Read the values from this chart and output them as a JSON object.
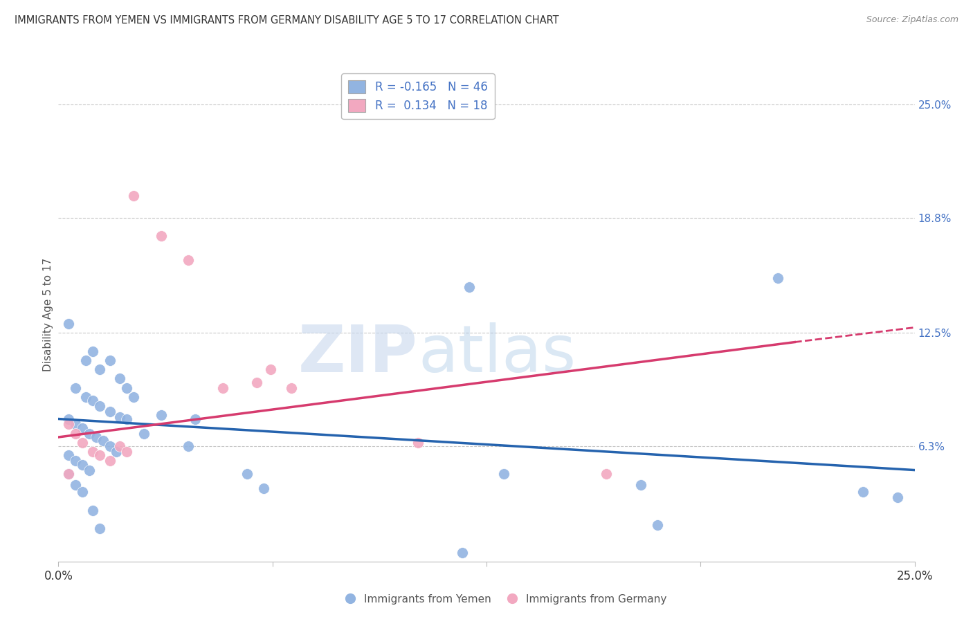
{
  "title": "IMMIGRANTS FROM YEMEN VS IMMIGRANTS FROM GERMANY DISABILITY AGE 5 TO 17 CORRELATION CHART",
  "source": "Source: ZipAtlas.com",
  "ylabel": "Disability Age 5 to 17",
  "xlim": [
    0.0,
    0.25
  ],
  "ylim": [
    0.0,
    0.27
  ],
  "ytick_labels": [
    "25.0%",
    "18.8%",
    "12.5%",
    "6.3%"
  ],
  "ytick_positions": [
    0.25,
    0.188,
    0.125,
    0.063
  ],
  "watermark_zip": "ZIP",
  "watermark_atlas": "atlas",
  "legend_blue_r": "-0.165",
  "legend_blue_n": "46",
  "legend_pink_r": "0.134",
  "legend_pink_n": "18",
  "blue_color": "#92b4e1",
  "pink_color": "#f2a8c0",
  "blue_line_color": "#2563ae",
  "pink_line_color": "#d63b6e",
  "blue_scatter": [
    [
      0.003,
      0.13
    ],
    [
      0.008,
      0.11
    ],
    [
      0.01,
      0.115
    ],
    [
      0.012,
      0.105
    ],
    [
      0.015,
      0.11
    ],
    [
      0.018,
      0.1
    ],
    [
      0.005,
      0.095
    ],
    [
      0.008,
      0.09
    ],
    [
      0.01,
      0.088
    ],
    [
      0.012,
      0.085
    ],
    [
      0.015,
      0.082
    ],
    [
      0.018,
      0.079
    ],
    [
      0.02,
      0.095
    ],
    [
      0.022,
      0.09
    ],
    [
      0.003,
      0.078
    ],
    [
      0.005,
      0.075
    ],
    [
      0.007,
      0.073
    ],
    [
      0.009,
      0.07
    ],
    [
      0.011,
      0.068
    ],
    [
      0.013,
      0.066
    ],
    [
      0.015,
      0.063
    ],
    [
      0.017,
      0.06
    ],
    [
      0.003,
      0.058
    ],
    [
      0.005,
      0.055
    ],
    [
      0.007,
      0.053
    ],
    [
      0.009,
      0.05
    ],
    [
      0.02,
      0.078
    ],
    [
      0.025,
      0.07
    ],
    [
      0.03,
      0.08
    ],
    [
      0.04,
      0.078
    ],
    [
      0.038,
      0.063
    ],
    [
      0.003,
      0.048
    ],
    [
      0.005,
      0.042
    ],
    [
      0.007,
      0.038
    ],
    [
      0.01,
      0.028
    ],
    [
      0.012,
      0.018
    ],
    [
      0.055,
      0.048
    ],
    [
      0.06,
      0.04
    ],
    [
      0.12,
      0.15
    ],
    [
      0.13,
      0.048
    ],
    [
      0.17,
      0.042
    ],
    [
      0.175,
      0.02
    ],
    [
      0.21,
      0.155
    ],
    [
      0.235,
      0.038
    ],
    [
      0.118,
      0.005
    ],
    [
      0.245,
      0.035
    ]
  ],
  "pink_scatter": [
    [
      0.003,
      0.075
    ],
    [
      0.005,
      0.07
    ],
    [
      0.007,
      0.065
    ],
    [
      0.01,
      0.06
    ],
    [
      0.012,
      0.058
    ],
    [
      0.015,
      0.055
    ],
    [
      0.018,
      0.063
    ],
    [
      0.02,
      0.06
    ],
    [
      0.022,
      0.2
    ],
    [
      0.03,
      0.178
    ],
    [
      0.038,
      0.165
    ],
    [
      0.048,
      0.095
    ],
    [
      0.058,
      0.098
    ],
    [
      0.062,
      0.105
    ],
    [
      0.068,
      0.095
    ],
    [
      0.105,
      0.065
    ],
    [
      0.16,
      0.048
    ],
    [
      0.003,
      0.048
    ]
  ],
  "blue_trendline": [
    [
      0.0,
      0.078
    ],
    [
      0.25,
      0.05
    ]
  ],
  "pink_trendline": [
    [
      0.0,
      0.068
    ],
    [
      0.215,
      0.12
    ]
  ],
  "pink_trendline_ext": [
    [
      0.215,
      0.12
    ],
    [
      0.25,
      0.128
    ]
  ]
}
